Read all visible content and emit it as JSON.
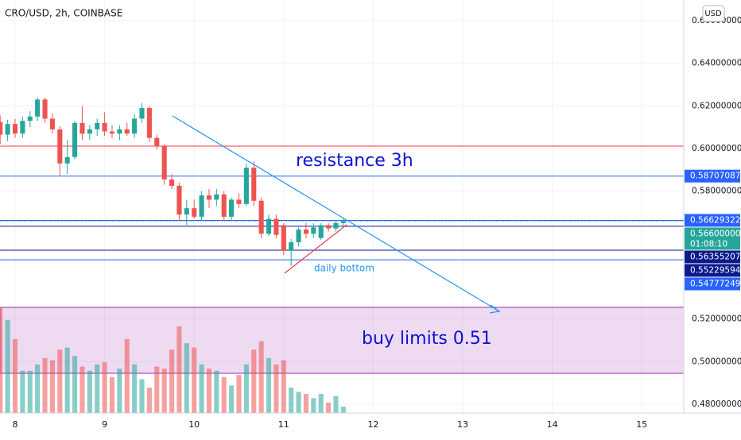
{
  "chart_data": {
    "type": "candlestick",
    "title": "CRO/USD, 2h, COINBASE",
    "currency": "USD",
    "up_color": "#26a69a",
    "down_color": "#ef5350",
    "x": [
      7.8333,
      7.9167,
      8,
      8.0833,
      8.1667,
      8.25,
      8.3333,
      8.4167,
      8.5,
      8.5833,
      8.6667,
      8.75,
      8.8333,
      8.9167,
      9,
      9.0833,
      9.1667,
      9.25,
      9.3333,
      9.4167,
      9.5,
      9.5833,
      9.6667,
      9.75,
      9.8333,
      9.9167,
      10,
      10.0833,
      10.1667,
      10.25,
      10.3333,
      10.4167,
      10.5,
      10.5833,
      10.6667,
      10.75,
      10.8333,
      10.9167,
      11,
      11.0833,
      11.1667,
      11.25,
      11.3333,
      11.4167,
      11.5,
      11.5833,
      11.6667
    ],
    "open": [
      0.6125,
      0.6065,
      0.6115,
      0.607,
      0.613,
      0.615,
      0.623,
      0.614,
      0.609,
      0.593,
      0.596,
      0.612,
      0.607,
      0.609,
      0.612,
      0.608,
      0.607,
      0.609,
      0.607,
      0.614,
      0.619,
      0.605,
      0.601,
      0.5855,
      0.5825,
      0.569,
      0.572,
      0.568,
      0.578,
      0.576,
      0.5785,
      0.568,
      0.576,
      0.574,
      0.591,
      0.5755,
      0.56,
      0.567,
      0.564,
      0.552,
      0.556,
      0.562,
      0.56,
      0.558,
      0.564,
      0.5625,
      0.565
    ],
    "high": [
      0.6155,
      0.6135,
      0.614,
      0.615,
      0.6175,
      0.624,
      0.624,
      0.6165,
      0.6105,
      0.604,
      0.613,
      0.62,
      0.611,
      0.614,
      0.617,
      0.611,
      0.611,
      0.612,
      0.616,
      0.6215,
      0.62,
      0.6065,
      0.602,
      0.588,
      0.584,
      0.576,
      0.576,
      0.58,
      0.581,
      0.581,
      0.58,
      0.577,
      0.579,
      0.593,
      0.594,
      0.577,
      0.569,
      0.569,
      0.565,
      0.5575,
      0.563,
      0.565,
      0.565,
      0.565,
      0.565,
      0.566,
      0.5675
    ],
    "low": [
      0.602,
      0.6035,
      0.605,
      0.605,
      0.61,
      0.613,
      0.612,
      0.607,
      0.587,
      0.588,
      0.595,
      0.604,
      0.604,
      0.606,
      0.606,
      0.605,
      0.604,
      0.606,
      0.605,
      0.612,
      0.603,
      0.5995,
      0.583,
      0.581,
      0.566,
      0.564,
      0.567,
      0.566,
      0.572,
      0.573,
      0.566,
      0.566,
      0.572,
      0.573,
      0.573,
      0.558,
      0.559,
      0.558,
      0.55,
      0.545,
      0.554,
      0.558,
      0.558,
      0.557,
      0.561,
      0.561,
      0.563
    ],
    "close": [
      0.6065,
      0.6115,
      0.607,
      0.613,
      0.615,
      0.623,
      0.614,
      0.609,
      0.593,
      0.596,
      0.612,
      0.607,
      0.609,
      0.612,
      0.608,
      0.607,
      0.609,
      0.607,
      0.614,
      0.619,
      0.605,
      0.601,
      0.5855,
      0.5825,
      0.569,
      0.572,
      0.568,
      0.578,
      0.576,
      0.5785,
      0.568,
      0.576,
      0.574,
      0.591,
      0.5755,
      0.56,
      0.567,
      0.5595,
      0.552,
      0.556,
      0.562,
      0.56,
      0.563,
      0.564,
      0.5625,
      0.565,
      0.566
    ],
    "volume": [
      100,
      88,
      70,
      40,
      40,
      46,
      52,
      50,
      60,
      62,
      54,
      44,
      40,
      46,
      48,
      34,
      42,
      70,
      46,
      32,
      24,
      44,
      42,
      60,
      82,
      66,
      62,
      46,
      42,
      40,
      34,
      26,
      36,
      46,
      60,
      68,
      52,
      46,
      50,
      24,
      20,
      18,
      14,
      18,
      10,
      16,
      6
    ],
    "xlim": [
      7.8313,
      15.469
    ],
    "xticks": [
      8,
      9,
      10,
      11,
      12,
      13,
      14,
      15
    ],
    "ylim": [
      0.4759,
      0.6697
    ],
    "yticks": [
      {
        "value": 0.66,
        "label": "0.66000000"
      },
      {
        "value": 0.64,
        "label": "0.64000000"
      },
      {
        "value": 0.62,
        "label": "0.62000000"
      },
      {
        "value": 0.6,
        "label": "0.60000000"
      },
      {
        "value": 0.58,
        "label": "0.58000000"
      },
      {
        "value": 0.52,
        "label": "0.52000000"
      },
      {
        "value": 0.5,
        "label": "0.50000000"
      },
      {
        "value": 0.48,
        "label": "0.48000000"
      }
    ],
    "price_lines": [
      {
        "value": 0.58707087,
        "label": "0.58707087",
        "color": "#2962ff"
      },
      {
        "value": 0.56629322,
        "label": "0.56629322",
        "color": "#2962ff"
      },
      {
        "value": 0.56355207,
        "label": "0.56355207",
        "color": "#0d1a8c"
      },
      {
        "value": 0.55229594,
        "label": "0.55229594",
        "color": "#0d1a8c"
      },
      {
        "value": 0.54777249,
        "label": "0.54777249",
        "color": "#2962ff"
      }
    ],
    "current_price": {
      "value": 0.566,
      "label": "0.56600000",
      "countdown": "01:08:10",
      "color": "#26a69a"
    },
    "annotations": {
      "resistance": "resistance 3h",
      "bottom": "daily bottom",
      "buy": "buy limits 0.51"
    }
  }
}
